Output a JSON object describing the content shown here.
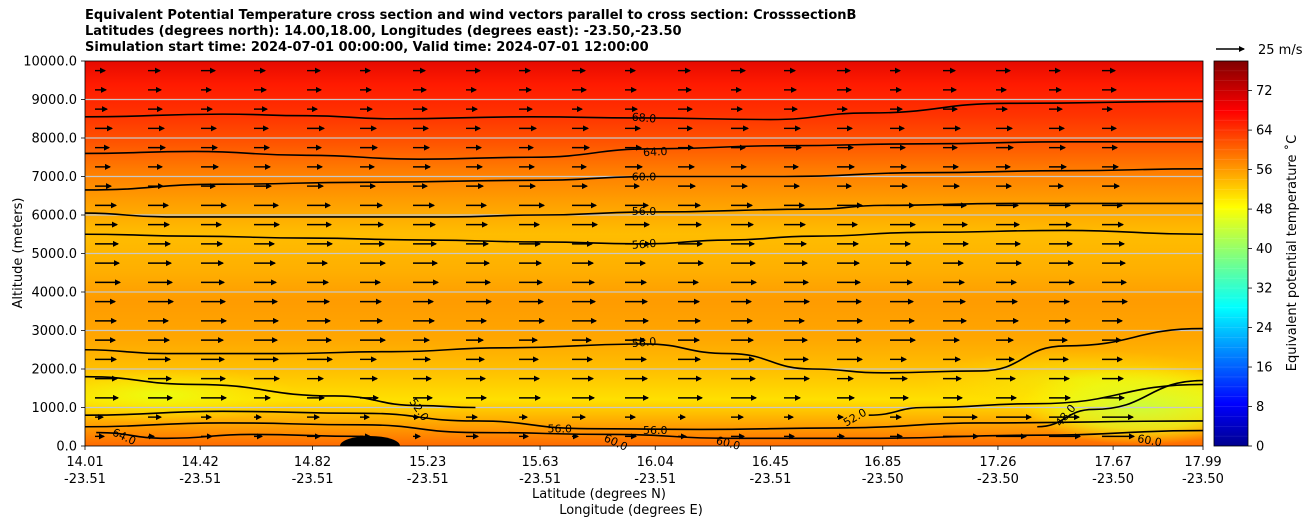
{
  "chart_data": {
    "type": "heatmap",
    "title_lines": [
      "Equivalent Potential Temperature cross section and wind vectors parallel to cross section: CrosssectionB",
      "Latitudes (degrees north): 14.00,18.00, Longitudes (degrees east): -23.50,-23.50",
      "Simulation start time: 2024-07-01 00:00:00, Valid time: 2024-07-01 12:00:00"
    ],
    "xlabel_lines": [
      "Latitude (degrees N)",
      "Longitude (degrees E)"
    ],
    "ylabel": "Altitude (meters)",
    "x_ticks": [
      {
        "lat": "14.01",
        "lon": "-23.51",
        "v": 14.01
      },
      {
        "lat": "14.42",
        "lon": "-23.51",
        "v": 14.42
      },
      {
        "lat": "14.82",
        "lon": "-23.51",
        "v": 14.82
      },
      {
        "lat": "15.23",
        "lon": "-23.51",
        "v": 15.23
      },
      {
        "lat": "15.63",
        "lon": "-23.51",
        "v": 15.63
      },
      {
        "lat": "16.04",
        "lon": "-23.51",
        "v": 16.04
      },
      {
        "lat": "16.45",
        "lon": "-23.51",
        "v": 16.45
      },
      {
        "lat": "16.85",
        "lon": "-23.50",
        "v": 16.85
      },
      {
        "lat": "17.26",
        "lon": "-23.50",
        "v": 17.26
      },
      {
        "lat": "17.67",
        "lon": "-23.50",
        "v": 17.67
      },
      {
        "lat": "17.99",
        "lon": "-23.50",
        "v": 17.99
      }
    ],
    "xlim": [
      14.01,
      17.99
    ],
    "y_ticks": [
      "0.0",
      "1000.0",
      "2000.0",
      "3000.0",
      "4000.0",
      "5000.0",
      "6000.0",
      "7000.0",
      "8000.0",
      "9000.0",
      "10000.0"
    ],
    "ylim": [
      0,
      10000
    ],
    "grid": "horizontal",
    "colorbar": {
      "label": "Equivalent potential temperature ˚C",
      "ticks": [
        "0",
        "8",
        "16",
        "24",
        "32",
        "40",
        "48",
        "56",
        "64",
        "72"
      ],
      "range": [
        0,
        78
      ],
      "colormap": "jet"
    },
    "quiver_key": "25 m/s",
    "contours": [
      {
        "level": 68,
        "label": "68.0",
        "points": [
          [
            14.01,
            8550
          ],
          [
            14.5,
            8620
          ],
          [
            14.8,
            8580
          ],
          [
            15.1,
            8500
          ],
          [
            15.6,
            8550
          ],
          [
            16.0,
            8520
          ],
          [
            16.45,
            8480
          ],
          [
            16.8,
            8650
          ],
          [
            17.3,
            8900
          ],
          [
            17.99,
            8950
          ]
        ]
      },
      {
        "level": 64,
        "label": "64.0",
        "points": [
          [
            14.01,
            7600
          ],
          [
            14.4,
            7650
          ],
          [
            14.8,
            7550
          ],
          [
            15.2,
            7450
          ],
          [
            15.6,
            7500
          ],
          [
            16.04,
            7720
          ],
          [
            16.5,
            7800
          ],
          [
            17.0,
            7850
          ],
          [
            17.5,
            7900
          ],
          [
            17.99,
            7900
          ]
        ]
      },
      {
        "level": 60,
        "label": "60.0",
        "points": [
          [
            14.01,
            6650
          ],
          [
            14.5,
            6800
          ],
          [
            15.0,
            6850
          ],
          [
            15.6,
            6900
          ],
          [
            16.04,
            7000
          ],
          [
            16.5,
            7000
          ],
          [
            17.0,
            7100
          ],
          [
            17.5,
            7150
          ],
          [
            17.99,
            7200
          ]
        ]
      },
      {
        "level": 56,
        "label": "56.0",
        "points": [
          [
            14.01,
            6050
          ],
          [
            14.3,
            5950
          ],
          [
            14.8,
            5950
          ],
          [
            15.3,
            5950
          ],
          [
            15.63,
            6000
          ],
          [
            16.04,
            6080
          ],
          [
            16.6,
            6150
          ],
          [
            16.85,
            6250
          ],
          [
            17.3,
            6300
          ],
          [
            17.99,
            6300
          ]
        ]
      },
      {
        "level": 56,
        "label": "56.0",
        "points": [
          [
            14.01,
            5500
          ],
          [
            14.4,
            5450
          ],
          [
            14.8,
            5400
          ],
          [
            15.23,
            5350
          ],
          [
            15.63,
            5300
          ],
          [
            16.0,
            5250
          ],
          [
            16.3,
            5350
          ],
          [
            16.6,
            5450
          ],
          [
            17.0,
            5550
          ],
          [
            17.5,
            5600
          ],
          [
            17.99,
            5500
          ]
        ]
      },
      {
        "level": 56,
        "label": "56.0",
        "points": [
          [
            14.01,
            2500
          ],
          [
            14.3,
            2400
          ],
          [
            14.7,
            2400
          ],
          [
            15.1,
            2450
          ],
          [
            15.5,
            2550
          ],
          [
            16.0,
            2650
          ],
          [
            16.3,
            2400
          ],
          [
            16.6,
            2000
          ],
          [
            16.85,
            1900
          ],
          [
            17.2,
            1950
          ],
          [
            17.5,
            2600
          ],
          [
            17.99,
            3050
          ]
        ]
      },
      {
        "level": 52,
        "label": "52.0",
        "points": [
          [
            14.01,
            1800
          ],
          [
            14.4,
            1600
          ],
          [
            14.9,
            1300
          ],
          [
            15.2,
            1050
          ],
          [
            15.4,
            1000
          ]
        ]
      },
      {
        "level": 52,
        "label": "52.0",
        "points": [
          [
            16.8,
            800
          ],
          [
            17.0,
            1000
          ],
          [
            17.4,
            1100
          ],
          [
            17.99,
            1600
          ]
        ]
      },
      {
        "level": 48,
        "label": "48.0",
        "points": [
          [
            17.4,
            500
          ],
          [
            17.6,
            950
          ],
          [
            17.99,
            1700
          ]
        ]
      },
      {
        "level": 56,
        "label": "56.0",
        "points": [
          [
            14.01,
            800
          ],
          [
            14.5,
            900
          ],
          [
            15.0,
            850
          ],
          [
            15.4,
            650
          ],
          [
            15.8,
            450
          ],
          [
            16.2,
            430
          ],
          [
            16.7,
            470
          ],
          [
            17.2,
            600
          ],
          [
            17.99,
            650
          ]
        ]
      },
      {
        "level": 60,
        "label": "60.0",
        "points": [
          [
            14.01,
            500
          ],
          [
            14.5,
            600
          ],
          [
            15.0,
            550
          ],
          [
            15.4,
            350
          ],
          [
            15.9,
            300
          ],
          [
            16.3,
            200
          ],
          [
            16.8,
            200
          ],
          [
            17.4,
            280
          ],
          [
            17.99,
            400
          ]
        ]
      },
      {
        "level": 64,
        "label": "64.0",
        "points": [
          [
            14.05,
            350
          ],
          [
            14.3,
            200
          ],
          [
            14.6,
            300
          ],
          [
            15.0,
            250
          ]
        ]
      }
    ],
    "contour_labels": [
      {
        "text": "68.0",
        "x": 16.0,
        "y": 8530,
        "rot": 5
      },
      {
        "text": "64.0",
        "x": 16.04,
        "y": 7650,
        "rot": -3
      },
      {
        "text": "60.0",
        "x": 16.0,
        "y": 7000,
        "rot": 0
      },
      {
        "text": "56.0",
        "x": 16.0,
        "y": 6100,
        "rot": 0
      },
      {
        "text": "56.0",
        "x": 16.0,
        "y": 5250,
        "rot": -5
      },
      {
        "text": "56.0",
        "x": 16.0,
        "y": 2700,
        "rot": -5
      },
      {
        "text": "52.0",
        "x": 15.2,
        "y": 950,
        "rot": 55
      },
      {
        "text": "52.0",
        "x": 16.75,
        "y": 750,
        "rot": -30
      },
      {
        "text": "48.0",
        "x": 17.5,
        "y": 800,
        "rot": -50
      },
      {
        "text": "56.0",
        "x": 15.7,
        "y": 450,
        "rot": 0
      },
      {
        "text": "56.0",
        "x": 16.04,
        "y": 420,
        "rot": 0
      },
      {
        "text": "60.0",
        "x": 15.9,
        "y": 100,
        "rot": 25
      },
      {
        "text": "60.0",
        "x": 16.3,
        "y": 80,
        "rot": 15
      },
      {
        "text": "60.0",
        "x": 17.8,
        "y": 150,
        "rot": 10
      },
      {
        "text": "64.0",
        "x": 14.15,
        "y": 250,
        "rot": 25
      }
    ]
  }
}
